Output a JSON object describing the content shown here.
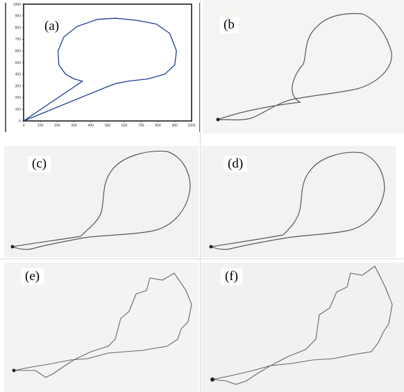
{
  "panels": [
    {
      "id": "a",
      "label": "(a)",
      "chart_data": {
        "type": "line",
        "xlim": [
          0,
          1000
        ],
        "ylim": [
          0,
          1000
        ],
        "xticks": [
          0,
          100,
          200,
          300,
          400,
          500,
          600,
          700,
          800,
          900,
          1000
        ],
        "yticks": [
          0,
          100,
          200,
          300,
          400,
          500,
          600,
          700,
          800,
          900,
          1000
        ],
        "grid": false,
        "color": "#1f3b9a",
        "x": [
          0,
          350,
          300,
          250,
          210,
          205,
          240,
          320,
          440,
          550,
          680,
          790,
          870,
          910,
          900,
          840,
          740,
          620,
          550,
          510,
          0
        ],
        "y": [
          0,
          340,
          360,
          400,
          480,
          600,
          720,
          810,
          870,
          880,
          860,
          830,
          750,
          600,
          480,
          400,
          360,
          340,
          320,
          300,
          0
        ]
      }
    },
    {
      "id": "b",
      "label": "(b",
      "bg": "#f4f4f2"
    },
    {
      "id": "c",
      "label": "(c)",
      "bg": "#f2f2f0"
    },
    {
      "id": "d",
      "label": "(d)",
      "bg": "#f2f2f0"
    },
    {
      "id": "e",
      "label": "(e)",
      "bg": "#f3f3f1"
    },
    {
      "id": "f",
      "label": "(f)",
      "bg": "#f1f1ef"
    }
  ]
}
